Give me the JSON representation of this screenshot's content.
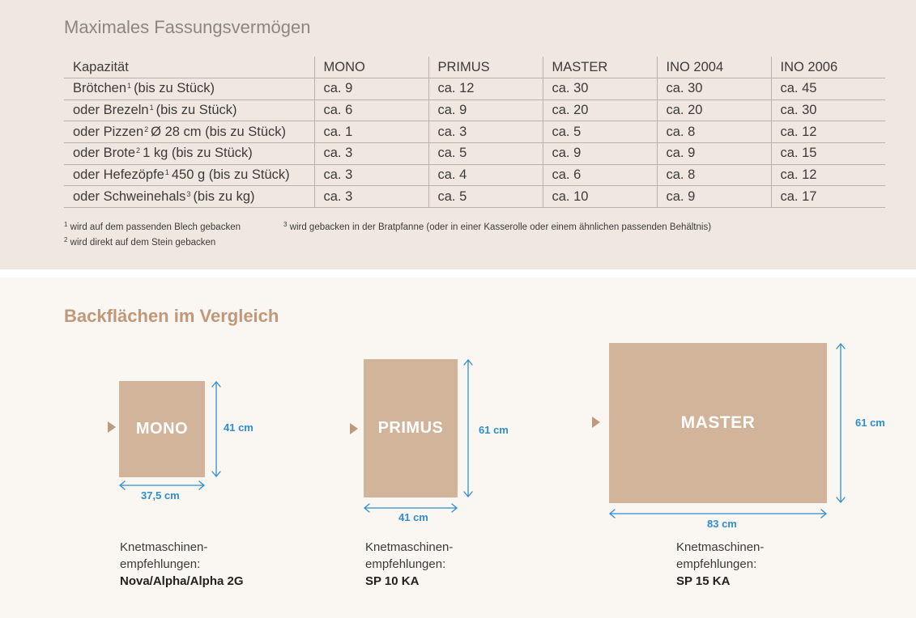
{
  "section1": {
    "title": "Maximales Fassungsvermögen",
    "header": [
      "Kapazität",
      "MONO",
      "PRIMUS",
      "MASTER",
      "INO 2004",
      "INO 2006"
    ],
    "rows": [
      {
        "pre": "Brötchen",
        "sup": "1",
        "post": "(bis zu Stück)",
        "values": [
          "ca. 9",
          "ca. 12",
          "ca. 30",
          "ca. 30",
          "ca. 45"
        ]
      },
      {
        "pre": "oder Brezeln",
        "sup": "1",
        "post": "(bis zu Stück)",
        "values": [
          "ca. 6",
          "ca. 9",
          "ca. 20",
          "ca. 20",
          "ca. 30"
        ]
      },
      {
        "pre": "oder Pizzen",
        "sup": "2",
        "post": "Ø 28 cm (bis zu Stück)",
        "values": [
          "ca. 1",
          "ca. 3",
          "ca. 5",
          "ca. 8",
          "ca. 12"
        ]
      },
      {
        "pre": "oder Brote",
        "sup": "2",
        "post": "1 kg (bis zu Stück)",
        "values": [
          "ca. 3",
          "ca. 5",
          "ca. 9",
          "ca. 9",
          "ca. 15"
        ]
      },
      {
        "pre": "oder Hefezöpfe",
        "sup": "1",
        "post": "450 g (bis zu Stück)",
        "values": [
          "ca. 3",
          "ca. 4",
          "ca. 6",
          "ca. 8",
          "ca. 12"
        ]
      },
      {
        "pre": "oder Schweinehals",
        "sup": "3",
        "post": "(bis zu kg)",
        "values": [
          "ca. 3",
          "ca. 5",
          "ca. 10",
          "ca. 9",
          "ca. 17"
        ]
      }
    ],
    "footnotes": [
      {
        "num": "1",
        "text": "wird auf dem passenden Blech gebacken"
      },
      {
        "num": "2",
        "text": "wird direkt auf dem Stein gebacken"
      },
      {
        "num": "3",
        "text": "wird gebacken in der Bratpfanne (oder in einer Kasserolle oder einem ähnlichen passenden Behältnis)"
      }
    ]
  },
  "section2": {
    "title": "Backflächen im Vergleich",
    "ovens": [
      {
        "name": "MONO",
        "width_label": "37,5 cm",
        "height_label": "41 cm",
        "reco_line1": "Knetmaschinen-",
        "reco_line2": "empfehlungen:",
        "reco_models": "Nova/Alpha/Alpha 2G"
      },
      {
        "name": "PRIMUS",
        "width_label": "41 cm",
        "height_label": "61 cm",
        "reco_line1": "Knetmaschinen-",
        "reco_line2": "empfehlungen:",
        "reco_models": "SP 10 KA"
      },
      {
        "name": "MASTER",
        "width_label": "83 cm",
        "height_label": "61 cm",
        "reco_line1": "Knetmaschinen-",
        "reco_line2": "empfehlungen:",
        "reco_models": "SP 15 KA"
      }
    ]
  },
  "colors": {
    "top_background": "#efe7e0",
    "bottom_background": "#faf6f1",
    "oven_fill": "#d1b49a",
    "heading_accent": "#c0987a",
    "dimension_blue": "#2f8ecf"
  }
}
